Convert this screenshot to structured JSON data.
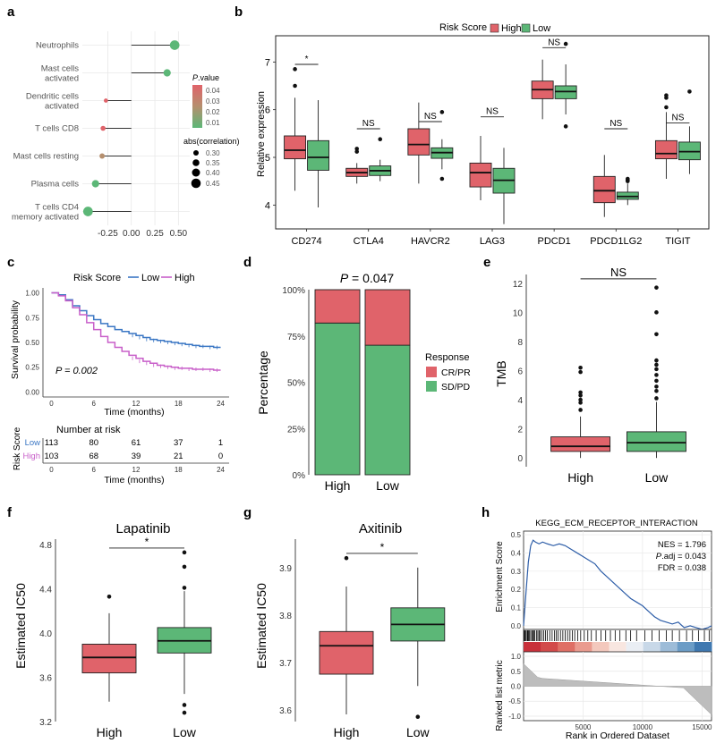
{
  "colors": {
    "high": "#e0636a",
    "low": "#5cb777",
    "km_high": "#c85fc9",
    "km_low": "#3b77c4",
    "gsea_curve": "#2e5ea8",
    "grid": "#e8e8e8"
  },
  "panel_labels": [
    "a",
    "b",
    "c",
    "d",
    "e",
    "f",
    "g",
    "h"
  ],
  "chart_data": [
    {
      "id": "a",
      "type": "lollipop",
      "categories": [
        "Neutrophils",
        "Mast cells activated",
        "Dendritic cells activated",
        "T cells CD8",
        "Mast cells resting",
        "Plasma cells",
        "T cells CD4 memory activated"
      ],
      "category_lines": [
        [
          "Neutrophils"
        ],
        [
          "Mast cells",
          "activated"
        ],
        [
          "Dendritic cells",
          "activated"
        ],
        [
          "T cells CD8"
        ],
        [
          "Mast cells resting"
        ],
        [
          "Plasma cells"
        ],
        [
          "T cells CD4",
          "memory activated"
        ]
      ],
      "values": [
        0.46,
        0.38,
        -0.27,
        -0.3,
        -0.31,
        -0.38,
        -0.46
      ],
      "pvalues": [
        0.005,
        0.008,
        0.045,
        0.03,
        0.025,
        0.01,
        0.006
      ],
      "abs_correlation": [
        0.46,
        0.38,
        0.27,
        0.3,
        0.31,
        0.38,
        0.46
      ],
      "x_ticks": [
        "-0.25",
        "0.00",
        "0.25",
        "0.50"
      ],
      "x_tick_values": [
        -0.25,
        0,
        0.25,
        0.5
      ],
      "xlim": [
        -0.52,
        0.62
      ],
      "legend_pvalue": {
        "title": "P.value",
        "title_italic": "P",
        "title_rest": ".value",
        "labels": [
          "0.04",
          "0.03",
          "0.02",
          "0.01"
        ]
      },
      "legend_size": {
        "title": "abs(correlation)",
        "labels": [
          "0.30",
          "0.35",
          "0.40",
          "0.45"
        ],
        "values": [
          0.3,
          0.35,
          0.4,
          0.45
        ]
      }
    },
    {
      "id": "b",
      "type": "boxplot",
      "title": "",
      "ylabel": "Relative expression",
      "legend_title": "Risk Score",
      "legend_entries": [
        "High",
        "Low"
      ],
      "ylim": [
        3.5,
        7.55
      ],
      "y_ticks": [
        "4",
        "5",
        "6",
        "7"
      ],
      "y_tick_values": [
        4,
        5,
        6,
        7
      ],
      "categories": [
        "CD274",
        "CTLA4",
        "HAVCR2",
        "LAG3",
        "PDCD1",
        "PDCD1LG2",
        "TIGIT"
      ],
      "significance": [
        "*",
        "NS",
        "NS",
        "NS",
        "NS",
        "NS",
        "NS"
      ],
      "sig_y": [
        6.95,
        5.6,
        5.75,
        5.85,
        7.3,
        5.6,
        5.72
      ],
      "series": [
        {
          "name": "High",
          "boxes": [
            {
              "min": 4.3,
              "q1": 4.97,
              "median": 5.15,
              "q3": 5.45,
              "max": 6.25,
              "outliers": [
                6.85,
                6.5
              ]
            },
            {
              "min": 4.45,
              "q1": 4.6,
              "median": 4.68,
              "q3": 4.77,
              "max": 4.88,
              "outliers": [
                5.18,
                5.12
              ]
            },
            {
              "min": 4.45,
              "q1": 5.05,
              "median": 5.27,
              "q3": 5.6,
              "max": 6.15,
              "outliers": []
            },
            {
              "min": 4.1,
              "q1": 4.38,
              "median": 4.68,
              "q3": 4.88,
              "max": 5.45,
              "outliers": []
            },
            {
              "min": 5.8,
              "q1": 6.23,
              "median": 6.42,
              "q3": 6.6,
              "max": 7.05,
              "outliers": []
            },
            {
              "min": 3.75,
              "q1": 4.05,
              "median": 4.3,
              "q3": 4.6,
              "max": 5.05,
              "outliers": []
            },
            {
              "min": 4.55,
              "q1": 4.97,
              "median": 5.08,
              "q3": 5.35,
              "max": 5.95,
              "outliers": [
                6.3,
                6.25,
                6.05
              ]
            }
          ]
        },
        {
          "name": "Low",
          "boxes": [
            {
              "min": 3.95,
              "q1": 4.73,
              "median": 5.0,
              "q3": 5.35,
              "max": 6.2,
              "outliers": []
            },
            {
              "min": 4.5,
              "q1": 4.62,
              "median": 4.72,
              "q3": 4.82,
              "max": 4.95,
              "outliers": [
                5.38
              ]
            },
            {
              "min": 4.75,
              "q1": 4.98,
              "median": 5.1,
              "q3": 5.2,
              "max": 5.38,
              "outliers": [
                5.95,
                4.55
              ]
            },
            {
              "min": 3.6,
              "q1": 4.25,
              "median": 4.52,
              "q3": 4.77,
              "max": 5.2,
              "outliers": []
            },
            {
              "min": 5.9,
              "q1": 6.23,
              "median": 6.38,
              "q3": 6.5,
              "max": 6.95,
              "outliers": [
                7.38,
                5.65
              ]
            },
            {
              "min": 4.0,
              "q1": 4.12,
              "median": 4.18,
              "q3": 4.27,
              "max": 4.45,
              "outliers": [
                4.55,
                4.52,
                4.5
              ]
            },
            {
              "min": 4.65,
              "q1": 4.95,
              "median": 5.12,
              "q3": 5.32,
              "max": 5.65,
              "outliers": [
                6.38
              ]
            }
          ]
        }
      ]
    },
    {
      "id": "c",
      "type": "line",
      "legend_title": "Risk Score",
      "legend_entries": [
        "Low",
        "High"
      ],
      "ylabel": "Survival probability",
      "xlabel": "Time (months)",
      "y_ticks": [
        "1.00",
        "0.75",
        "0.50",
        "0.25",
        "0.00"
      ],
      "y_tick_values": [
        1.0,
        0.75,
        0.5,
        0.25,
        0.0
      ],
      "x_ticks": [
        "0",
        "6",
        "12",
        "18",
        "24"
      ],
      "x_tick_values": [
        0,
        6,
        12,
        18,
        24
      ],
      "xlim": [
        -1.2,
        25.2
      ],
      "ylim": [
        -0.05,
        1.05
      ],
      "annotation": "P = 0.002",
      "series": [
        {
          "name": "Low",
          "x": [
            0,
            1,
            2,
            3,
            4,
            5,
            6,
            7,
            8,
            9,
            10,
            11,
            12,
            13,
            14,
            15,
            16,
            17,
            18,
            19,
            20,
            21,
            22,
            23,
            24
          ],
          "y": [
            1.0,
            0.98,
            0.93,
            0.87,
            0.82,
            0.77,
            0.73,
            0.69,
            0.66,
            0.63,
            0.61,
            0.59,
            0.57,
            0.55,
            0.53,
            0.52,
            0.51,
            0.5,
            0.49,
            0.48,
            0.47,
            0.46,
            0.46,
            0.45,
            0.45
          ]
        },
        {
          "name": "High",
          "x": [
            0,
            1,
            2,
            3,
            4,
            5,
            6,
            7,
            8,
            9,
            10,
            11,
            12,
            13,
            14,
            15,
            16,
            17,
            18,
            19,
            20,
            21,
            22,
            23,
            24
          ],
          "y": [
            1.0,
            0.97,
            0.92,
            0.85,
            0.78,
            0.7,
            0.63,
            0.56,
            0.5,
            0.45,
            0.41,
            0.37,
            0.34,
            0.31,
            0.29,
            0.27,
            0.26,
            0.25,
            0.24,
            0.24,
            0.23,
            0.23,
            0.23,
            0.22,
            0.22
          ]
        }
      ],
      "risk_table": {
        "title": "Number at risk",
        "ylabel": "Risk Score",
        "xlabel": "Time (months)",
        "x_ticks": [
          "0",
          "6",
          "12",
          "18",
          "24"
        ],
        "rows": [
          {
            "name": "Low",
            "values": [
              "113",
              "80",
              "61",
              "37",
              "1"
            ]
          },
          {
            "name": "High",
            "values": [
              "103",
              "68",
              "39",
              "21",
              "0"
            ]
          }
        ]
      }
    },
    {
      "id": "d",
      "type": "bar",
      "title": "P = 0.047",
      "title_italic": "P",
      "title_rest": " = 0.047",
      "ylabel": "Percentage",
      "categories": [
        "High",
        "Low"
      ],
      "y_ticks": [
        "100%",
        "75%",
        "50%",
        "25%",
        "0%"
      ],
      "y_tick_values": [
        100,
        75,
        50,
        25,
        0
      ],
      "legend_title": "Response",
      "legend_entries": [
        "CR/PR",
        "SD/PD"
      ],
      "series": [
        {
          "name": "SD/PD",
          "values": [
            82,
            70
          ]
        },
        {
          "name": "CR/PR",
          "values": [
            18,
            30
          ]
        }
      ]
    },
    {
      "id": "e",
      "type": "boxplot",
      "ylabel": "TMB",
      "significance": "NS",
      "categories": [
        "High",
        "Low"
      ],
      "ylim": [
        -0.6,
        12.6
      ],
      "y_ticks": [
        "0",
        "2",
        "4",
        "6",
        "8",
        "10",
        "12"
      ],
      "y_tick_values": [
        0,
        2,
        4,
        6,
        8,
        10,
        12
      ],
      "boxes": [
        {
          "min": 0.0,
          "q1": 0.45,
          "median": 0.8,
          "q3": 1.45,
          "max": 2.85,
          "outliers": [
            3.3,
            3.8,
            4.0,
            4.3,
            4.5,
            5.9,
            6.2
          ]
        },
        {
          "min": 0.0,
          "q1": 0.45,
          "median": 1.05,
          "q3": 1.8,
          "max": 3.85,
          "outliers": [
            4.1,
            4.6,
            4.9,
            5.3,
            5.7,
            6.1,
            6.4,
            6.7,
            8.5,
            10.0,
            11.7
          ]
        }
      ]
    },
    {
      "id": "f",
      "type": "boxplot",
      "title": "Lapatinib",
      "ylabel": "Estimated IC50",
      "significance": "*",
      "categories": [
        "High",
        "Low"
      ],
      "ylim": [
        3.2,
        4.85
      ],
      "y_ticks": [
        "4.8",
        "4.4",
        "4.0",
        "3.6",
        "3.2"
      ],
      "y_tick_values": [
        4.8,
        4.4,
        4.0,
        3.6,
        3.2
      ],
      "boxes": [
        {
          "min": 3.38,
          "q1": 3.64,
          "median": 3.78,
          "q3": 3.9,
          "max": 4.18,
          "outliers": [
            4.33
          ]
        },
        {
          "min": 3.45,
          "q1": 3.82,
          "median": 3.93,
          "q3": 4.05,
          "max": 4.38,
          "outliers": [
            4.73,
            4.6,
            4.41,
            3.35,
            3.28
          ]
        }
      ]
    },
    {
      "id": "g",
      "type": "boxplot",
      "title": "Axitinib",
      "ylabel": "Estimated IC50",
      "significance": "*",
      "categories": [
        "High",
        "Low"
      ],
      "ylim": [
        3.575,
        3.96
      ],
      "y_ticks": [
        "3.9",
        "3.8",
        "3.7",
        "3.6"
      ],
      "y_tick_values": [
        3.9,
        3.8,
        3.7,
        3.6
      ],
      "boxes": [
        {
          "min": 3.59,
          "q1": 3.675,
          "median": 3.735,
          "q3": 3.765,
          "max": 3.86,
          "outliers": [
            3.92
          ]
        },
        {
          "min": 3.65,
          "q1": 3.745,
          "median": 3.78,
          "q3": 3.815,
          "max": 3.9,
          "outliers": [
            3.585
          ]
        }
      ]
    },
    {
      "id": "h",
      "type": "gsea",
      "title": "KEGG_ECM_RECEPTOR_INTERACTION",
      "stats": [
        "NES = 1.796",
        "P.adj = 0.043",
        "FDR = 0.038"
      ],
      "stat_padj_italic": "P",
      "stat_padj_rest": ".adj = 0.043",
      "ylabel_es": "Enrichment Score",
      "ylabel_rank": "Ranked list metric",
      "xlabel": "Rank in Ordered Dataset",
      "es_y_ticks": [
        "0.5",
        "0.4",
        "0.3",
        "0.2",
        "0.1",
        "0.0"
      ],
      "es_y_tick_values": [
        0.5,
        0.4,
        0.3,
        0.2,
        0.1,
        0.0
      ],
      "rank_y_ticks": [
        "1.0",
        "0.5",
        "0.0",
        "-0.5",
        "-1.0"
      ],
      "rank_y_tick_values": [
        1.0,
        0.5,
        0.0,
        -0.5,
        -1.0
      ],
      "x_ticks": [
        "5000",
        "10000",
        "15000"
      ],
      "x_tick_values": [
        5000,
        10000,
        15000
      ],
      "xlim": [
        0,
        15800
      ],
      "es_x": [
        0,
        200,
        400,
        600,
        800,
        1000,
        1300,
        1600,
        2000,
        2500,
        3000,
        3500,
        4000,
        4500,
        5000,
        5500,
        6000,
        6500,
        7000,
        7500,
        8000,
        8500,
        9000,
        9500,
        10000,
        10500,
        11000,
        11500,
        12000,
        12500,
        13000,
        13500,
        14000,
        14500,
        15000,
        15500,
        15800
      ],
      "es_y": [
        0.0,
        0.18,
        0.35,
        0.44,
        0.47,
        0.46,
        0.45,
        0.46,
        0.45,
        0.44,
        0.45,
        0.44,
        0.42,
        0.4,
        0.38,
        0.36,
        0.34,
        0.3,
        0.27,
        0.24,
        0.21,
        0.18,
        0.15,
        0.13,
        0.11,
        0.08,
        0.05,
        0.03,
        0.02,
        0.01,
        0.02,
        -0.01,
        0.0,
        -0.01,
        -0.02,
        -0.01,
        0.0
      ],
      "hits": [
        50,
        120,
        200,
        300,
        350,
        420,
        500,
        600,
        700,
        800,
        850,
        950,
        1100,
        1200,
        1300,
        1400,
        1550,
        1700,
        1850,
        2000,
        2200,
        2400,
        2600,
        2750,
        2900,
        3100,
        3300,
        3500,
        3700,
        3900,
        4100,
        4300,
        4550,
        4800,
        5100,
        5400,
        5700,
        6100,
        6500,
        6900,
        7300,
        7700,
        8100,
        8600,
        9000,
        9500,
        10200,
        10800,
        11400,
        12000,
        12500,
        13100,
        13700,
        14200,
        14700,
        15200,
        15600
      ]
    }
  ]
}
